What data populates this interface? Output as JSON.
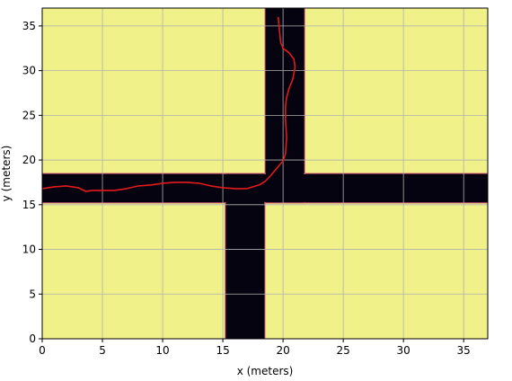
{
  "chart_data": {
    "type": "heatmap",
    "title": "",
    "xlabel": "x (meters)",
    "ylabel": "y (meters)",
    "xlim": [
      0,
      37
    ],
    "ylim": [
      0,
      37
    ],
    "xticks": [
      0,
      5,
      10,
      15,
      20,
      25,
      30,
      35
    ],
    "yticks": [
      0,
      5,
      10,
      15,
      20,
      25,
      30,
      35
    ],
    "grid": true,
    "colors": {
      "free_space": "#f1f18a",
      "road": "#05030f",
      "edge": "#e0607a",
      "path": "#e31a1c",
      "grid": "#b0b0b0"
    },
    "road_regions": [
      {
        "name": "horizontal-road",
        "x": [
          0,
          37
        ],
        "y": [
          15.2,
          18.5
        ]
      },
      {
        "name": "vertical-road-upper",
        "x": [
          18.5,
          21.8
        ],
        "y": [
          18.5,
          37
        ]
      },
      {
        "name": "vertical-road-lower",
        "x": [
          15.2,
          18.5
        ],
        "y": [
          0,
          15.2
        ]
      },
      {
        "name": "intersection-upper",
        "x": [
          18.5,
          21.8
        ],
        "y": [
          15.2,
          18.5
        ]
      },
      {
        "name": "intersection-lower",
        "x": [
          15.2,
          18.5
        ],
        "y": [
          15.2,
          18.5
        ]
      }
    ],
    "path": {
      "x": [
        0,
        1,
        2,
        3,
        3.6,
        4.2,
        5,
        6,
        7,
        8,
        9,
        10,
        11,
        12,
        13,
        14,
        15,
        16,
        17,
        18,
        18.5,
        19,
        19.5,
        20,
        20.2,
        20.3,
        20.2,
        20.2,
        20.3,
        20.5,
        20.8,
        21,
        20.9,
        20.5,
        20,
        19.8,
        19.7,
        19.6
      ],
      "y": [
        16.8,
        17.0,
        17.1,
        16.9,
        16.5,
        16.6,
        16.6,
        16.6,
        16.8,
        17.1,
        17.2,
        17.4,
        17.5,
        17.5,
        17.4,
        17.1,
        16.9,
        16.8,
        16.8,
        17.2,
        17.6,
        18.3,
        19.1,
        19.9,
        20.7,
        22.5,
        24.5,
        26.0,
        27.0,
        28.0,
        29.0,
        30.4,
        31.3,
        32.0,
        32.5,
        33.2,
        34.5,
        36.0
      ]
    }
  }
}
